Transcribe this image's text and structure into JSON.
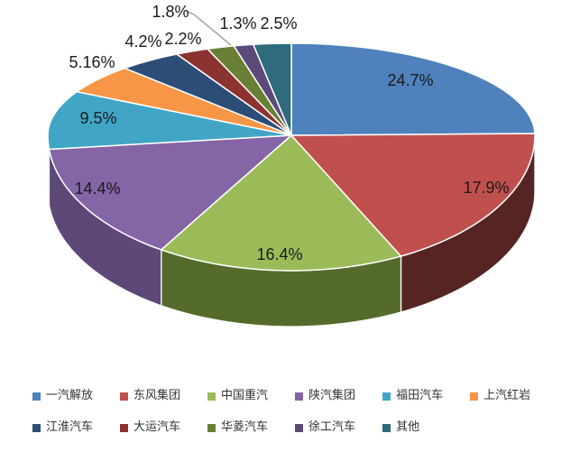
{
  "page": {
    "background": "#ffffff"
  },
  "chart_data": {
    "type": "pie",
    "style": "3d",
    "title": "",
    "start_angle_deg": 0,
    "direction": "clockwise",
    "labels": [
      "一汽解放",
      "东风集团",
      "中国重汽",
      "陕汽集团",
      "福田汽车",
      "上汽红岩",
      "江淮汽车",
      "大运汽车",
      "华菱汽车",
      "徐工汽车",
      "其他"
    ],
    "values": [
      24.7,
      17.9,
      16.4,
      14.4,
      9.5,
      5.16,
      4.2,
      2.2,
      1.8,
      1.3,
      2.5
    ],
    "value_labels": [
      "24.7%",
      "17.9%",
      "16.4%",
      "14.4%",
      "9.5%",
      "5.16%",
      "4.2%",
      "2.2%",
      "1.8%",
      "1.3%",
      "2.5%"
    ],
    "colors": [
      "#4f81bd",
      "#c0504d",
      "#9bbb59",
      "#8465a5",
      "#41a6c6",
      "#f79646",
      "#2c4d76",
      "#8a3331",
      "#697f35",
      "#5c4a7a",
      "#2d6b7d"
    ],
    "side_colors": [
      null,
      "#552423",
      "#556b2b",
      "#5e4878",
      "#2f7d97",
      null,
      null,
      null,
      null,
      null,
      null
    ],
    "label_color": "#1a1a1a",
    "slice_outline_color": "#ffffff",
    "leader_line_color": "#a6a6a6",
    "legend": {
      "position": "bottom",
      "rows": 2,
      "text_color": "#333333"
    }
  }
}
